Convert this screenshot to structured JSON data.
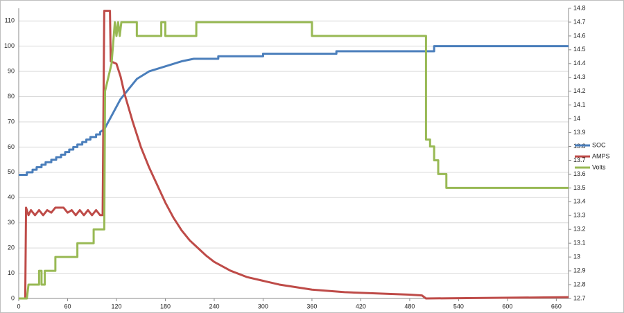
{
  "chart_data": {
    "type": "line",
    "xlim": [
      0,
      675
    ],
    "xticks": [
      0,
      60,
      120,
      180,
      240,
      300,
      360,
      420,
      480,
      540,
      600,
      660
    ],
    "ylim": [
      0,
      115
    ],
    "yticks": [
      0,
      10,
      20,
      30,
      40,
      50,
      60,
      70,
      80,
      90,
      100,
      110
    ],
    "y2lim": [
      12.7,
      14.8
    ],
    "y2ticks": [
      12.7,
      12.8,
      12.9,
      13,
      13.1,
      13.2,
      13.3,
      13.4,
      13.5,
      13.6,
      13.7,
      13.8,
      13.9,
      14,
      14.1,
      14.2,
      14.3,
      14.4,
      14.5,
      14.6,
      14.7,
      14.8
    ],
    "grid": true,
    "legend": "right",
    "series": [
      {
        "name": "SOC",
        "color": "#4a7ebb",
        "x": [
          0,
          10,
          10,
          17,
          17,
          22,
          22,
          28,
          28,
          33,
          33,
          40,
          40,
          46,
          46,
          52,
          52,
          57,
          57,
          62,
          62,
          67,
          67,
          72,
          72,
          78,
          78,
          83,
          83,
          88,
          88,
          95,
          95,
          100,
          100,
          105,
          110,
          115,
          120,
          125,
          130,
          135,
          140,
          145,
          150,
          155,
          160,
          170,
          180,
          190,
          200,
          215,
          245,
          245,
          300,
          300,
          390,
          390,
          510,
          510,
          675
        ],
        "values": [
          49,
          49,
          50,
          50,
          51,
          51,
          52,
          52,
          53,
          53,
          54,
          54,
          55,
          55,
          56,
          56,
          57,
          57,
          58,
          58,
          59,
          59,
          60,
          60,
          61,
          61,
          62,
          62,
          63,
          63,
          64,
          64,
          65,
          65,
          66,
          67,
          70,
          73,
          76,
          79,
          81,
          83,
          85,
          87,
          88,
          89,
          90,
          91,
          92,
          93,
          94,
          95,
          95,
          96,
          96,
          97,
          97,
          98,
          98,
          100,
          100
        ]
      },
      {
        "name": "AMPS",
        "color": "#be4b48",
        "x": [
          0,
          8,
          9,
          12,
          15,
          20,
          25,
          30,
          35,
          40,
          45,
          55,
          60,
          65,
          70,
          75,
          80,
          85,
          90,
          95,
          100,
          103,
          105,
          112,
          113,
          120,
          125,
          130,
          140,
          150,
          160,
          170,
          180,
          190,
          200,
          210,
          220,
          230,
          240,
          260,
          280,
          300,
          320,
          340,
          360,
          400,
          440,
          480,
          495,
          500,
          675
        ],
        "values": [
          0,
          0,
          36,
          33,
          35,
          33,
          35,
          33,
          35,
          34,
          36,
          36,
          34,
          35,
          33,
          35,
          33,
          35,
          33,
          35,
          33,
          33,
          114,
          114,
          94,
          93,
          88,
          81,
          70,
          60,
          52,
          45,
          38,
          32,
          27,
          23,
          20,
          17,
          14.5,
          11,
          8.5,
          7,
          5.5,
          4.5,
          3.5,
          2.5,
          2,
          1.5,
          1.2,
          0,
          0.5
        ]
      },
      {
        "name": "Volts",
        "color": "#98b954",
        "axis": "y2",
        "x": [
          0,
          10,
          12,
          25,
          25,
          28,
          28,
          32,
          32,
          35,
          45,
          45,
          72,
          72,
          92,
          92,
          105,
          106,
          110,
          114,
          118,
          120,
          122,
          124,
          126,
          145,
          145,
          175,
          175,
          180,
          180,
          218,
          218,
          360,
          360,
          500,
          500,
          505,
          505,
          510,
          510,
          515,
          515,
          525,
          525,
          675
        ],
        "values": [
          12.7,
          12.7,
          12.8,
          12.8,
          12.9,
          12.9,
          12.8,
          12.8,
          12.9,
          12.9,
          12.9,
          13,
          13,
          13.1,
          13.1,
          13.2,
          13.2,
          14.2,
          14.3,
          14.4,
          14.7,
          14.6,
          14.7,
          14.6,
          14.7,
          14.7,
          14.6,
          14.6,
          14.7,
          14.7,
          14.6,
          14.6,
          14.7,
          14.7,
          14.6,
          14.6,
          13.85,
          13.85,
          13.8,
          13.8,
          13.7,
          13.7,
          13.6,
          13.6,
          13.5,
          13.5
        ]
      }
    ]
  }
}
